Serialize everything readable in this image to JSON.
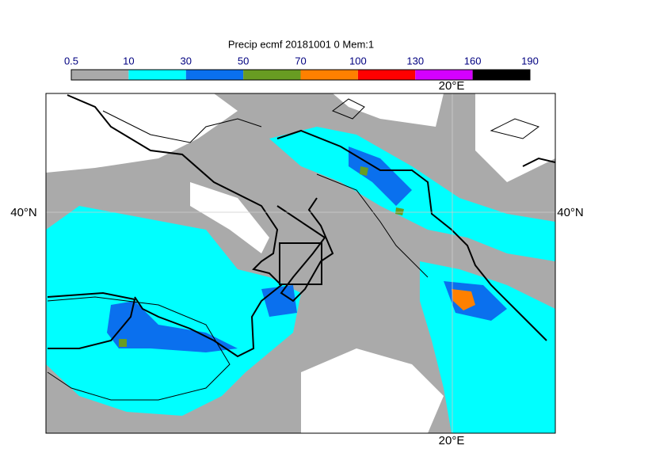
{
  "title": "Precip ecmf 20181001 0 Mem:1",
  "colorbar": {
    "levels": [
      0.5,
      10,
      30,
      50,
      70,
      100,
      130,
      160,
      190
    ],
    "colors": [
      "#aaaaaa",
      "#00ffff",
      "#0a70ee",
      "#689c22",
      "#ff8000",
      "#ff0000",
      "#d400ff",
      "#000000"
    ]
  },
  "map": {
    "lat_label": "40°N",
    "lon_label": "20°E"
  }
}
